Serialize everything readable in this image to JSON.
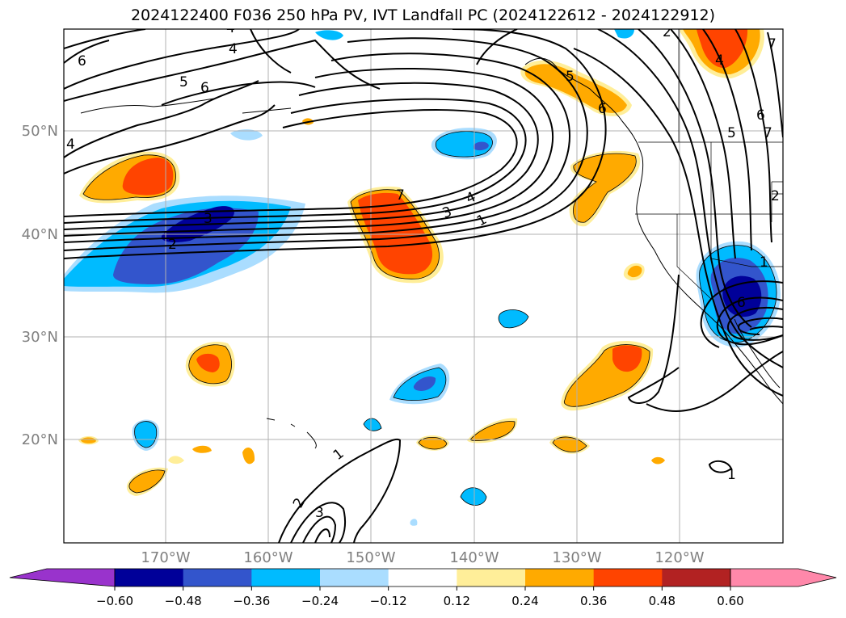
{
  "title": "2024122400 F036 250 hPa PV, IVT Landfall PC (2024122612 - 2024122912)",
  "map": {
    "lat_labels": [
      "50°N",
      "40°N",
      "30°N",
      "20°N"
    ],
    "lon_labels": [
      "170°W",
      "160°W",
      "150°W",
      "140°W",
      "130°W",
      "120°W"
    ],
    "gridlines": true
  },
  "colorbar": {
    "ticks": [
      "−0.60",
      "−0.48",
      "−0.36",
      "−0.24",
      "−0.12",
      "0.12",
      "0.24",
      "0.36",
      "0.48",
      "0.60"
    ],
    "colors": {
      "under": "#9933cc",
      "bins": [
        "#000099",
        "#3355cc",
        "#00bbff",
        "#aaddff",
        "#ffffff",
        "#ffee99",
        "#ffaa00",
        "#ff4400",
        "#b22222"
      ],
      "over": "#ff88aa"
    }
  },
  "contour_labels": [
    "1",
    "2",
    "3",
    "4",
    "5",
    "6",
    "7",
    "1",
    "3",
    "4",
    "7",
    "5",
    "6",
    "6",
    "4",
    "2",
    "1",
    "2",
    "3",
    "1",
    "4",
    "2",
    "6",
    "5",
    "6",
    "7",
    "4"
  ]
}
